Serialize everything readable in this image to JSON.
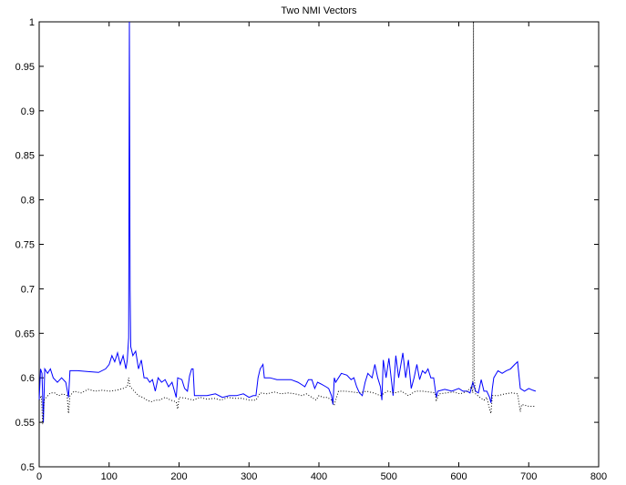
{
  "chart_data": {
    "type": "line",
    "title": "Two NMI Vectors",
    "xlabel": "",
    "ylabel": "",
    "xlim": [
      0,
      800
    ],
    "ylim": [
      0.5,
      1
    ],
    "xticks": [
      "0",
      "100",
      "200",
      "300",
      "400",
      "500",
      "600",
      "700",
      "800"
    ],
    "yticks": [
      "0.5",
      "0.55",
      "0.6",
      "0.65",
      "0.7",
      "0.75",
      "0.8",
      "0.85",
      "0.9",
      "0.95",
      "1"
    ],
    "grid": false,
    "legend": "none",
    "series": [
      {
        "style": "solid",
        "color": "#0000ff",
        "points": [
          [
            0,
            0.575
          ],
          [
            2,
            0.61
          ],
          [
            4,
            0.605
          ],
          [
            6,
            0.55
          ],
          [
            8,
            0.61
          ],
          [
            12,
            0.605
          ],
          [
            16,
            0.61
          ],
          [
            20,
            0.6
          ],
          [
            26,
            0.595
          ],
          [
            32,
            0.6
          ],
          [
            38,
            0.595
          ],
          [
            42,
            0.578
          ],
          [
            44,
            0.608
          ],
          [
            55,
            0.608
          ],
          [
            70,
            0.607
          ],
          [
            85,
            0.606
          ],
          [
            95,
            0.61
          ],
          [
            100,
            0.615
          ],
          [
            104,
            0.625
          ],
          [
            108,
            0.618
          ],
          [
            112,
            0.628
          ],
          [
            116,
            0.615
          ],
          [
            120,
            0.625
          ],
          [
            124,
            0.61
          ],
          [
            126,
            0.62
          ],
          [
            128,
            0.645
          ],
          [
            129,
            1.0
          ],
          [
            130,
            0.7
          ],
          [
            131,
            0.635
          ],
          [
            134,
            0.625
          ],
          [
            138,
            0.63
          ],
          [
            142,
            0.61
          ],
          [
            146,
            0.62
          ],
          [
            150,
            0.6
          ],
          [
            154,
            0.6
          ],
          [
            158,
            0.595
          ],
          [
            162,
            0.598
          ],
          [
            166,
            0.585
          ],
          [
            170,
            0.6
          ],
          [
            175,
            0.595
          ],
          [
            180,
            0.598
          ],
          [
            185,
            0.59
          ],
          [
            190,
            0.595
          ],
          [
            196,
            0.578
          ],
          [
            198,
            0.6
          ],
          [
            204,
            0.598
          ],
          [
            208,
            0.588
          ],
          [
            212,
            0.585
          ],
          [
            215,
            0.602
          ],
          [
            218,
            0.61
          ],
          [
            220,
            0.61
          ],
          [
            222,
            0.58
          ],
          [
            228,
            0.58
          ],
          [
            240,
            0.58
          ],
          [
            252,
            0.582
          ],
          [
            262,
            0.578
          ],
          [
            272,
            0.58
          ],
          [
            282,
            0.58
          ],
          [
            292,
            0.582
          ],
          [
            300,
            0.578
          ],
          [
            306,
            0.58
          ],
          [
            310,
            0.58
          ],
          [
            313,
            0.6
          ],
          [
            316,
            0.61
          ],
          [
            320,
            0.615
          ],
          [
            322,
            0.6
          ],
          [
            330,
            0.6
          ],
          [
            340,
            0.598
          ],
          [
            350,
            0.598
          ],
          [
            360,
            0.598
          ],
          [
            370,
            0.595
          ],
          [
            376,
            0.592
          ],
          [
            380,
            0.59
          ],
          [
            385,
            0.598
          ],
          [
            390,
            0.598
          ],
          [
            394,
            0.588
          ],
          [
            398,
            0.595
          ],
          [
            403,
            0.593
          ],
          [
            410,
            0.59
          ],
          [
            414,
            0.588
          ],
          [
            418,
            0.58
          ],
          [
            420,
            0.57
          ],
          [
            422,
            0.6
          ],
          [
            424,
            0.595
          ],
          [
            428,
            0.6
          ],
          [
            432,
            0.605
          ],
          [
            440,
            0.603
          ],
          [
            446,
            0.598
          ],
          [
            450,
            0.6
          ],
          [
            454,
            0.59
          ],
          [
            458,
            0.583
          ],
          [
            462,
            0.58
          ],
          [
            466,
            0.595
          ],
          [
            470,
            0.605
          ],
          [
            476,
            0.6
          ],
          [
            480,
            0.615
          ],
          [
            484,
            0.6
          ],
          [
            488,
            0.59
          ],
          [
            490,
            0.575
          ],
          [
            492,
            0.62
          ],
          [
            496,
            0.6
          ],
          [
            500,
            0.622
          ],
          [
            504,
            0.595
          ],
          [
            506,
            0.58
          ],
          [
            510,
            0.625
          ],
          [
            514,
            0.6
          ],
          [
            520,
            0.628
          ],
          [
            524,
            0.6
          ],
          [
            528,
            0.62
          ],
          [
            532,
            0.588
          ],
          [
            536,
            0.6
          ],
          [
            540,
            0.615
          ],
          [
            544,
            0.598
          ],
          [
            548,
            0.608
          ],
          [
            552,
            0.605
          ],
          [
            556,
            0.61
          ],
          [
            560,
            0.6
          ],
          [
            564,
            0.6
          ],
          [
            568,
            0.578
          ],
          [
            570,
            0.585
          ],
          [
            580,
            0.587
          ],
          [
            590,
            0.585
          ],
          [
            600,
            0.588
          ],
          [
            606,
            0.585
          ],
          [
            612,
            0.585
          ],
          [
            616,
            0.583
          ],
          [
            620,
            0.595
          ],
          [
            624,
            0.585
          ],
          [
            628,
            0.583
          ],
          [
            632,
            0.598
          ],
          [
            636,
            0.585
          ],
          [
            640,
            0.585
          ],
          [
            644,
            0.578
          ],
          [
            646,
            0.572
          ],
          [
            648,
            0.588
          ],
          [
            650,
            0.6
          ],
          [
            656,
            0.608
          ],
          [
            662,
            0.605
          ],
          [
            668,
            0.608
          ],
          [
            674,
            0.61
          ],
          [
            680,
            0.615
          ],
          [
            684,
            0.618
          ],
          [
            688,
            0.588
          ],
          [
            694,
            0.585
          ],
          [
            700,
            0.588
          ],
          [
            706,
            0.586
          ],
          [
            710,
            0.585
          ]
        ]
      },
      {
        "style": "dotted",
        "color": "#000000",
        "points": [
          [
            0,
            0.575
          ],
          [
            3,
            0.58
          ],
          [
            5,
            0.548
          ],
          [
            7,
            0.575
          ],
          [
            10,
            0.578
          ],
          [
            16,
            0.583
          ],
          [
            22,
            0.583
          ],
          [
            28,
            0.58
          ],
          [
            34,
            0.582
          ],
          [
            40,
            0.58
          ],
          [
            42,
            0.56
          ],
          [
            44,
            0.58
          ],
          [
            50,
            0.585
          ],
          [
            60,
            0.583
          ],
          [
            70,
            0.587
          ],
          [
            80,
            0.585
          ],
          [
            90,
            0.586
          ],
          [
            100,
            0.585
          ],
          [
            110,
            0.586
          ],
          [
            120,
            0.588
          ],
          [
            126,
            0.59
          ],
          [
            128,
            0.6
          ],
          [
            130,
            0.59
          ],
          [
            136,
            0.585
          ],
          [
            142,
            0.58
          ],
          [
            148,
            0.578
          ],
          [
            154,
            0.575
          ],
          [
            160,
            0.573
          ],
          [
            166,
            0.575
          ],
          [
            172,
            0.575
          ],
          [
            180,
            0.578
          ],
          [
            188,
            0.575
          ],
          [
            196,
            0.573
          ],
          [
            198,
            0.565
          ],
          [
            200,
            0.578
          ],
          [
            210,
            0.577
          ],
          [
            220,
            0.575
          ],
          [
            230,
            0.578
          ],
          [
            240,
            0.576
          ],
          [
            250,
            0.577
          ],
          [
            260,
            0.575
          ],
          [
            270,
            0.578
          ],
          [
            280,
            0.577
          ],
          [
            290,
            0.577
          ],
          [
            300,
            0.575
          ],
          [
            310,
            0.575
          ],
          [
            316,
            0.583
          ],
          [
            326,
            0.582
          ],
          [
            336,
            0.584
          ],
          [
            346,
            0.582
          ],
          [
            356,
            0.583
          ],
          [
            366,
            0.582
          ],
          [
            376,
            0.58
          ],
          [
            382,
            0.582
          ],
          [
            390,
            0.578
          ],
          [
            396,
            0.575
          ],
          [
            400,
            0.58
          ],
          [
            406,
            0.578
          ],
          [
            412,
            0.578
          ],
          [
            418,
            0.575
          ],
          [
            422,
            0.57
          ],
          [
            428,
            0.585
          ],
          [
            438,
            0.585
          ],
          [
            448,
            0.584
          ],
          [
            458,
            0.583
          ],
          [
            468,
            0.585
          ],
          [
            478,
            0.583
          ],
          [
            488,
            0.58
          ],
          [
            498,
            0.585
          ],
          [
            508,
            0.583
          ],
          [
            518,
            0.585
          ],
          [
            528,
            0.58
          ],
          [
            538,
            0.585
          ],
          [
            548,
            0.585
          ],
          [
            558,
            0.584
          ],
          [
            566,
            0.583
          ],
          [
            568,
            0.575
          ],
          [
            572,
            0.582
          ],
          [
            582,
            0.583
          ],
          [
            592,
            0.584
          ],
          [
            602,
            0.582
          ],
          [
            612,
            0.585
          ],
          [
            618,
            0.59
          ],
          [
            620,
            0.583
          ],
          [
            621,
            1.0
          ],
          [
            622,
            0.6
          ],
          [
            624,
            0.582
          ],
          [
            630,
            0.578
          ],
          [
            636,
            0.575
          ],
          [
            640,
            0.578
          ],
          [
            644,
            0.565
          ],
          [
            646,
            0.56
          ],
          [
            648,
            0.58
          ],
          [
            656,
            0.58
          ],
          [
            666,
            0.582
          ],
          [
            676,
            0.583
          ],
          [
            684,
            0.582
          ],
          [
            688,
            0.562
          ],
          [
            690,
            0.57
          ],
          [
            700,
            0.568
          ],
          [
            710,
            0.568
          ]
        ]
      }
    ]
  }
}
